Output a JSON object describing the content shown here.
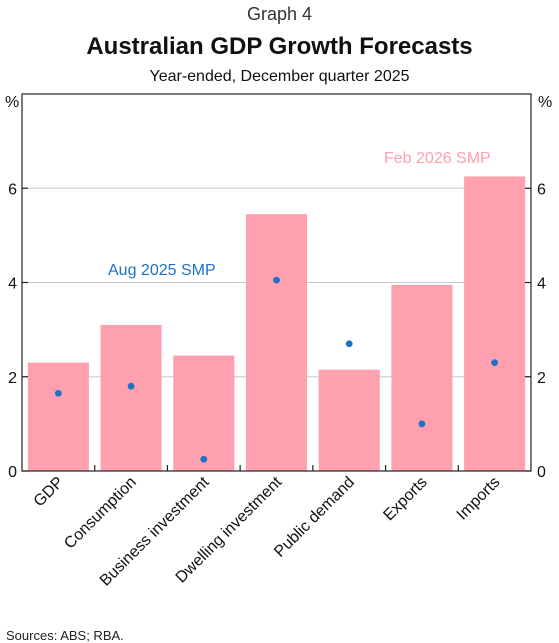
{
  "header": {
    "graph_label": "Graph 4",
    "title": "Australian GDP Growth Forecasts",
    "subtitle": "Year-ended, December quarter 2025"
  },
  "footer": {
    "sources": "Sources: ABS; RBA."
  },
  "colors": {
    "bar": "#FFA0AE",
    "dot": "#1E72C6",
    "bar_label": "#FFA0AE",
    "dot_label": "#1E72C6",
    "grid": "#c8c8c8",
    "axis": "#222222"
  },
  "chart_data": {
    "type": "bar",
    "categories": [
      "GDP",
      "Consumption",
      "Business investment",
      "Dwelling investment",
      "Public demand",
      "Exports",
      "Imports"
    ],
    "series": [
      {
        "name": "Feb 2026 SMP",
        "kind": "bar",
        "values": [
          2.3,
          3.1,
          2.45,
          5.45,
          2.15,
          3.95,
          6.25
        ]
      },
      {
        "name": "Aug 2025 SMP",
        "kind": "dot",
        "values": [
          1.65,
          1.8,
          0.25,
          4.05,
          2.7,
          1.0,
          2.3
        ]
      }
    ],
    "ylabel": "%",
    "ylabel_right": "%",
    "ylim": [
      0,
      8
    ],
    "yticks": [
      0,
      2,
      4,
      6
    ],
    "grid": true
  }
}
